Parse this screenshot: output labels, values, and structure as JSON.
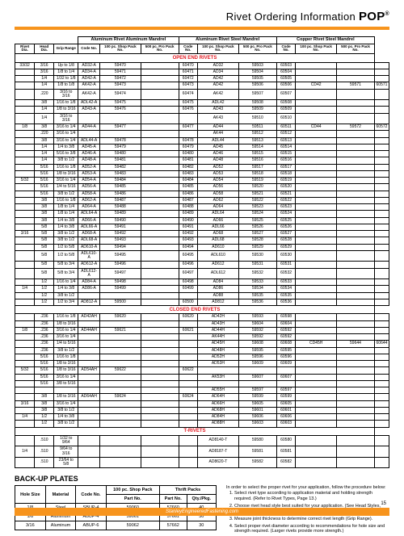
{
  "header": {
    "title": "Rivet Ordering Information",
    "brand": "POP",
    "reg": "®"
  },
  "colors": {
    "accent": "#f7941d",
    "section": "#e31b23"
  },
  "mainTable": {
    "groupHeaders": [
      "Aluminum Rivet Aluminum Mandrel",
      "Aluminum Rivet Steel Mandrel",
      "Copper Rivet Steel Mandrel"
    ],
    "colHeaders": [
      "Rivet Dia.",
      "Head Dia.",
      "Grip Range",
      "Code No.",
      "100 pc. Shop Pack No.",
      "500 pc. Pro Pack No.",
      "Code No.",
      "100 pc. Shop Pack No.",
      "500 pc. Pro Pack No.",
      "Code No.",
      "100 pc. Shop Pack No.",
      "500 pc. Pro Pack No."
    ],
    "sections": [
      {
        "title": "OPEN END RIVETS",
        "rows": [
          [
            "33/32",
            "3/16",
            "Up to 1/8",
            "AD32-A",
            "59470",
            "",
            "60470",
            "AD32",
            "59503",
            "60503",
            "",
            "",
            ""
          ],
          [
            "",
            "3/16",
            "1/8 to 1/4",
            "AD34-A",
            "59471",
            "",
            "60471",
            "AD34",
            "59504",
            "60504",
            "",
            "",
            ""
          ],
          [
            "",
            "1/4",
            "1/32 to 1/8",
            "AD42-A",
            "59472",
            "",
            "60472",
            "AD42",
            "59505",
            "60505",
            "",
            "",
            ""
          ],
          [
            "",
            "1/4",
            "1/8 to 1/8",
            "AK42-A",
            "59473",
            "",
            "60473",
            "AD42",
            "59506",
            "60506",
            "CD42",
            "59571",
            "60571"
          ],
          [
            "",
            ".220",
            "3/16 to 3/16",
            "AK42-A",
            "59474",
            "",
            "60474",
            "AK42",
            "59507",
            "60507",
            "",
            "",
            ""
          ],
          [
            "",
            "3/8",
            "1/16 to 1/8",
            "ADL42-A",
            "59475",
            "",
            "60475",
            "ADL42",
            "59508",
            "60508",
            "",
            "",
            ""
          ],
          [
            "",
            "1/4",
            "1/8 to 3/16",
            "AD43-A",
            "59476",
            "",
            "60476",
            "AD43",
            "59509",
            "60509",
            "",
            "",
            ""
          ],
          [
            "",
            "1/4",
            "3/16 to 3/16",
            "",
            "",
            "",
            "",
            "AK43",
            "59510",
            "60510",
            "",
            "",
            ""
          ],
          [
            "1/8",
            "3/8",
            "3/16 to 1/4",
            "AD44-A",
            "59477",
            "",
            "60477",
            "AD44",
            "59511",
            "60511",
            "CD44",
            "59572",
            "60572"
          ],
          [
            "",
            ".220",
            "3/16 to 1/4",
            "",
            "",
            "",
            "",
            "AK44",
            "59512",
            "60512",
            "",
            "",
            ""
          ],
          [
            "",
            "3/8",
            "3/16 to 1/4",
            "ADL44-A",
            "59478",
            "",
            "60478",
            "ADL44",
            "59513",
            "60513",
            "",
            "",
            ""
          ],
          [
            "",
            "1/4",
            "1/4 to 3/8",
            "AD45-A",
            "59479",
            "",
            "60479",
            "AD45",
            "59514",
            "60514",
            "",
            "",
            ""
          ],
          [
            "",
            "1/4",
            "5/16 to 3/8",
            "AD46-A",
            "59480",
            "",
            "60480",
            "AD46",
            "59515",
            "60515",
            "",
            "",
            ""
          ],
          [
            "",
            "1/4",
            "3/8 to 1/2",
            "AD48-A",
            "59481",
            "",
            "60481",
            "AD48",
            "59516",
            "60516",
            "",
            "",
            ""
          ],
          [
            "",
            "5/16",
            "1/16 to 1/8",
            "AD52-A",
            "59482",
            "",
            "60482",
            "AD52",
            "59517",
            "60517",
            "",
            "",
            ""
          ],
          [
            "",
            "5/16",
            "1/8 to 3/16",
            "AD53-A",
            "59483",
            "",
            "60483",
            "AD53",
            "59518",
            "60518",
            "",
            "",
            ""
          ],
          [
            "5/32",
            "5/16",
            "3/16 to 1/4",
            "AD54-A",
            "59484",
            "",
            "60484",
            "AD54",
            "59519",
            "60519",
            "",
            "",
            ""
          ],
          [
            "",
            "5/16",
            "1/4 to 5/16",
            "AD56-A",
            "59485",
            "",
            "60485",
            "AD56",
            "59520",
            "60520",
            "",
            "",
            ""
          ],
          [
            "",
            "5/16",
            "3/8 to 1/2",
            "AD58-A",
            "59486",
            "",
            "60486",
            "AD58",
            "59521",
            "60521",
            "",
            "",
            ""
          ],
          [
            "",
            "3/8",
            "1/16 to 1/8",
            "AD62-A",
            "59487",
            "",
            "60487",
            "AD62",
            "59522",
            "60522",
            "",
            "",
            ""
          ],
          [
            "",
            "3/8",
            "1/8 to 1/4",
            "AD64-A",
            "59488",
            "",
            "60488",
            "AD64",
            "59523",
            "60523",
            "",
            "",
            ""
          ],
          [
            "",
            "3/8",
            "1/8 to 1/4",
            "ADL64-A",
            "59489",
            "",
            "60489",
            "ADL64",
            "59524",
            "60524",
            "",
            "",
            ""
          ],
          [
            "",
            "3/8",
            "1/4 to 3/8",
            "AD66-A",
            "59490",
            "",
            "60490",
            "AD66",
            "59525",
            "60525",
            "",
            "",
            ""
          ],
          [
            "",
            "5/8",
            "1/4 to 3/8",
            "ADL66-A",
            "59491",
            "",
            "60491",
            "ADL66",
            "59526",
            "60526",
            "",
            "",
            ""
          ],
          [
            "3/16",
            "5/8",
            "3/8 to 1/2",
            "AD68-A",
            "59492",
            "",
            "60492",
            "AD68",
            "59527",
            "60527",
            "",
            "",
            ""
          ],
          [
            "",
            "5/8",
            "3/8 to 1/2",
            "ADL68-A",
            "59493",
            "",
            "60493",
            "ADL68",
            "59528",
            "60528",
            "",
            "",
            ""
          ],
          [
            "",
            "5/8",
            "1/2 to 5/8",
            "AD610-A",
            "59494",
            "",
            "60494",
            "AD610",
            "59529",
            "60529",
            "",
            "",
            ""
          ],
          [
            "",
            "5/8",
            "1/2 to 5/8",
            "ADL610-A",
            "59495",
            "",
            "60495",
            "ADL610",
            "59530",
            "60530",
            "",
            "",
            ""
          ],
          [
            "",
            "5/8",
            "5/8 to 3/4",
            "AD612-A",
            "59496",
            "",
            "60496",
            "AD612",
            "59531",
            "60531",
            "",
            "",
            ""
          ],
          [
            "",
            "5/8",
            "5/8 to 3/4",
            "ADL612-A",
            "59497",
            "",
            "60497",
            "ADL612",
            "59532",
            "60532",
            "",
            "",
            ""
          ],
          [
            "",
            "1/2",
            "1/16 to 1/4",
            "AD84-A",
            "59498",
            "",
            "60498",
            "AD84",
            "59533",
            "60533",
            "",
            "",
            ""
          ],
          [
            "1/4",
            "1/2",
            "1/4 to 3/8",
            "AD86-A",
            "59499",
            "",
            "60499",
            "AD86",
            "59534",
            "60534",
            "",
            "",
            ""
          ],
          [
            "",
            "1/2",
            "3/8 to 1/2",
            "",
            "",
            "",
            "",
            "AD88",
            "59535",
            "60535",
            "",
            "",
            ""
          ],
          [
            "",
            "1/2",
            "1/2 to 3/4",
            "AD812-A",
            "59500",
            "",
            "60500",
            "AD812",
            "59536",
            "60536",
            "",
            "",
            ""
          ]
        ]
      },
      {
        "title": "CLOSED END RIVETS",
        "rows": [
          [
            "",
            ".236",
            "1/16 to 1/8",
            "AD42AH",
            "59620",
            "",
            "60620",
            "AD42H",
            "59593",
            "60598",
            "",
            "",
            ""
          ],
          [
            "",
            ".236",
            "1/8 to 3/16",
            "",
            "",
            "",
            "",
            "AD43H",
            "59604",
            "60604",
            "",
            "",
            ""
          ],
          [
            "1/8",
            ".236",
            "3/16 to 1/4",
            "AD44AH",
            "59621",
            "",
            "60621",
            "AD44H",
            "59592",
            "60592",
            "",
            "",
            ""
          ],
          [
            "",
            ".236",
            "3/16 to 1/4",
            "",
            "",
            "",
            "",
            "AK44H",
            "59592",
            "60592",
            "",
            "",
            ""
          ],
          [
            "",
            ".236",
            "1/4 to 5/16",
            "",
            "",
            "",
            "",
            "AD45H",
            "59608",
            "60608",
            "CD45H",
            "59644",
            "60644"
          ],
          [
            "",
            ".236",
            "3/8 to 1/2",
            "",
            "",
            "",
            "",
            "AD48H",
            "59595",
            "60595",
            "",
            "",
            ""
          ],
          [
            "",
            "5/16",
            "1/16 to 1/8",
            "",
            "",
            "",
            "",
            "AD52H",
            "59596",
            "60596",
            "",
            "",
            ""
          ],
          [
            "",
            "5/16",
            "1/8 to 3/16",
            "",
            "",
            "",
            "",
            "AD53H",
            "59609",
            "60609",
            "",
            "",
            ""
          ],
          [
            "5/32",
            "5/16",
            "1/8 to 3/16",
            "AD54AH",
            "59622",
            "",
            "60622",
            "",
            "",
            "",
            "",
            "",
            ""
          ],
          [
            "",
            "5/16",
            "3/16 to 1/4",
            "",
            "",
            "",
            "",
            "AK53H",
            "59607",
            "60607",
            "",
            "",
            ""
          ],
          [
            "",
            "5/16",
            "3/8 to 5/16",
            "",
            "",
            "",
            "",
            "",
            "",
            "",
            "",
            "",
            ""
          ],
          [
            "",
            "",
            "",
            "",
            "",
            "",
            "",
            "AD55H",
            "59597",
            "60597",
            "",
            "",
            ""
          ],
          [
            "",
            "3/8",
            "1/8 to 3/16",
            "AD64AH",
            "59624",
            "",
            "60624",
            "AD64H",
            "59599",
            "60599",
            "",
            "",
            ""
          ],
          [
            "3/16",
            "3/8",
            "3/16 to 1/4",
            "",
            "",
            "",
            "",
            "AD66H",
            "59605",
            "60605",
            "",
            "",
            ""
          ],
          [
            "",
            "3/8",
            "3/8 to 1/2",
            "",
            "",
            "",
            "",
            "AD68H",
            "59601",
            "60601",
            "",
            "",
            ""
          ],
          [
            "1/4",
            "1/2",
            "1/4 to 3/8",
            "",
            "",
            "",
            "",
            "AD84H",
            "59606",
            "60606",
            "",
            "",
            ""
          ],
          [
            "",
            "1/2",
            "3/8 to 1/2",
            "",
            "",
            "",
            "",
            "AD88H",
            "59603",
            "60603",
            "",
            "",
            ""
          ]
        ]
      },
      {
        "title": "T-RIVETS",
        "rows": [
          [
            "",
            ".510",
            "1/32 to 9/64",
            "",
            "",
            "",
            "",
            "AD8140-T",
            "59580",
            "60580",
            "",
            "",
            ""
          ],
          [
            "1/4",
            ".510",
            "9/64 to 3/16",
            "",
            "",
            "",
            "",
            "AD8187-T",
            "59581",
            "60581",
            "",
            "",
            ""
          ],
          [
            "",
            ".510",
            "23/64 to 5/8",
            "",
            "",
            "",
            "",
            "AD8620-T",
            "59582",
            "60582",
            "",
            "",
            ""
          ]
        ]
      }
    ]
  },
  "notes": {
    "intro": "In order to select the proper rivet for your application, follow the procedure below:",
    "items": [
      "Select rivet type according to application material and holding strength required. (Refer to Rivet Types, Page 13.)",
      "Choose rivet head style best suited for your application. (See Head Styles, Page 13.)",
      "Measure joint thickness to determine correct rivet length (Grip Range).",
      "Select proper rivet diameter according to recommendations for hole size and strength required. (Larger rivets provide more strength.)"
    ]
  },
  "backup": {
    "title": "BACK-UP PLATES",
    "headers": [
      "Hole Size",
      "Material",
      "Code No.",
      "100 pc. Shop Pack",
      "Thrift Packs",
      ""
    ],
    "subheaders": [
      "",
      "",
      "",
      "Part No.",
      "Part No.",
      "Qty./Pkg."
    ],
    "rows": [
      [
        "1/8",
        "Steel",
        "SBUP-4",
        "59060",
        "57660",
        "40"
      ],
      [
        "1/8",
        "Aluminum",
        "ABUP-4",
        "59061",
        "57661",
        "30"
      ],
      [
        "3/16",
        "Aluminum",
        "ABUP-6",
        "59062",
        "57662",
        "30"
      ]
    ]
  },
  "footer": {
    "url": "StanleyEngineeredFastening.com",
    "page": "15"
  }
}
